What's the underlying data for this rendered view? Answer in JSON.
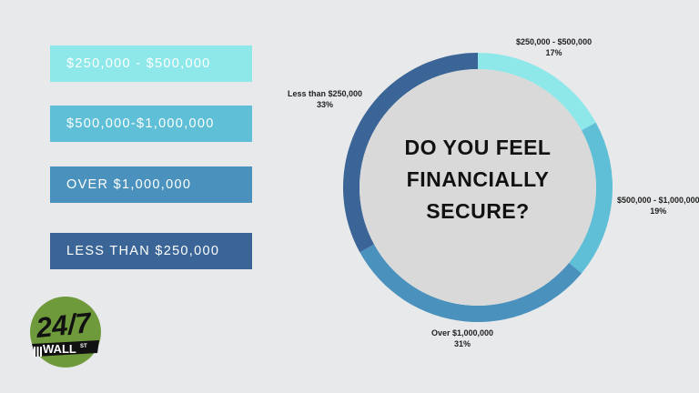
{
  "legend": [
    {
      "label": "$250,000 - $500,000",
      "color": "#8ee8ea",
      "text_color": "#ffffff"
    },
    {
      "label": "$500,000-$1,000,000",
      "color": "#5ebfd6",
      "text_color": "#ffffff"
    },
    {
      "label": "OVER $1,000,000",
      "color": "#4a92bd",
      "text_color": "#ffffff"
    },
    {
      "label": "LESS THAN $250,000",
      "color": "#3a6596",
      "text_color": "#ffffff"
    }
  ],
  "chart_data": {
    "type": "pie",
    "title": "DO YOU FEEL FINANCIALLY SECURE?",
    "slices": [
      {
        "name": "$250,000 - $500,000",
        "value": 17,
        "value_label": "17%",
        "color": "#8ee8ea"
      },
      {
        "name": "$500,000 - $1,000,000",
        "value": 19,
        "value_label": "19%",
        "color": "#5ebfd6"
      },
      {
        "name": "Over $1,000,000",
        "value": 31,
        "value_label": "31%",
        "color": "#4a92bd"
      },
      {
        "name": "Less than $250,000",
        "value": 33,
        "value_label": "33%",
        "color": "#3a6596"
      }
    ],
    "donut": true,
    "start_angle": "top, clockwise"
  },
  "logo": {
    "text_247": "24/7",
    "text_wall": "WALL",
    "text_st": "ST",
    "color": "#6f9a3c"
  }
}
